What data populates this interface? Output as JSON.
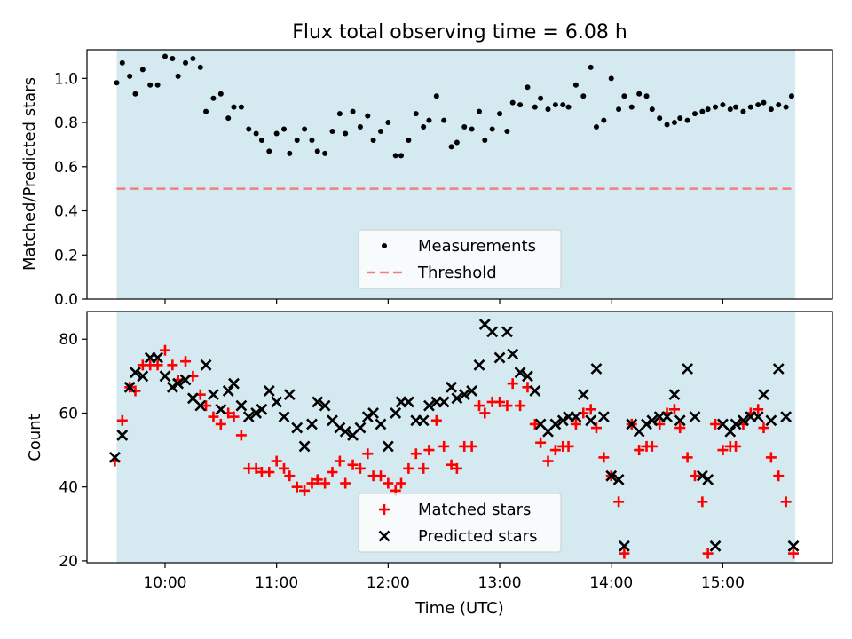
{
  "title": "Flux total observing time = 6.08 h",
  "colors": {
    "observing_band": "#d4eaf0",
    "threshold": "#f08080",
    "matched": "#ff0000",
    "predicted": "#000000",
    "measurements": "#000000"
  },
  "chart_data": [
    {
      "type": "scatter",
      "ylabel": "Matched/Predicted stars",
      "xlabel": "",
      "xlim": [
        "09:18",
        "15:59"
      ],
      "ylim": [
        0,
        1.13
      ],
      "y_ticks": [
        "0.0",
        "0.2",
        "0.4",
        "0.6",
        "0.8",
        "1.0"
      ],
      "observing_window": [
        "09:34",
        "15:39"
      ],
      "threshold": 0.5,
      "legend": {
        "placement": "lower-center",
        "entries": [
          "Measurements",
          "Threshold"
        ]
      },
      "series": [
        {
          "name": "Measurements",
          "marker": "dot",
          "x": [
            "09:34",
            "09:37",
            "09:41",
            "09:44",
            "09:48",
            "09:52",
            "09:56",
            "10:00",
            "10:04",
            "10:07",
            "10:11",
            "10:15",
            "10:19",
            "10:22",
            "10:26",
            "10:30",
            "10:34",
            "10:37",
            "10:41",
            "10:45",
            "10:49",
            "10:52",
            "10:56",
            "11:00",
            "11:04",
            "11:07",
            "11:11",
            "11:15",
            "11:19",
            "11:22",
            "11:26",
            "11:30",
            "11:34",
            "11:37",
            "11:41",
            "11:45",
            "11:49",
            "11:52",
            "11:56",
            "12:00",
            "12:04",
            "12:07",
            "12:11",
            "12:15",
            "12:19",
            "12:22",
            "12:26",
            "12:30",
            "12:34",
            "12:37",
            "12:41",
            "12:45",
            "12:49",
            "12:52",
            "12:56",
            "13:00",
            "13:04",
            "13:07",
            "13:11",
            "13:15",
            "13:19",
            "13:22",
            "13:26",
            "13:30",
            "13:34",
            "13:37",
            "13:41",
            "13:45",
            "13:49",
            "13:52",
            "13:56",
            "14:00",
            "14:04",
            "14:07",
            "14:11",
            "14:15",
            "14:19",
            "14:22",
            "14:26",
            "14:30",
            "14:34",
            "14:37",
            "14:41",
            "14:45",
            "14:49",
            "14:52",
            "14:56",
            "15:00",
            "15:04",
            "15:07",
            "15:11",
            "15:15",
            "15:19",
            "15:22",
            "15:26",
            "15:30",
            "15:34",
            "15:37"
          ],
          "y": [
            0.98,
            1.07,
            1.01,
            0.93,
            1.04,
            0.97,
            0.97,
            1.1,
            1.09,
            1.01,
            1.07,
            1.09,
            1.05,
            0.85,
            0.91,
            0.93,
            0.82,
            0.87,
            0.87,
            0.77,
            0.75,
            0.72,
            0.67,
            0.75,
            0.77,
            0.66,
            0.72,
            0.77,
            0.72,
            0.67,
            0.66,
            0.76,
            0.84,
            0.75,
            0.85,
            0.78,
            0.83,
            0.72,
            0.76,
            0.8,
            0.65,
            0.65,
            0.72,
            0.84,
            0.78,
            0.81,
            0.92,
            0.81,
            0.69,
            0.71,
            0.78,
            0.77,
            0.85,
            0.72,
            0.77,
            0.84,
            0.76,
            0.89,
            0.88,
            0.96,
            0.87,
            0.91,
            0.86,
            0.88,
            0.88,
            0.87,
            0.97,
            0.92,
            1.05,
            0.78,
            0.81,
            1.0,
            0.86,
            0.92,
            0.87,
            0.93,
            0.92,
            0.86,
            0.82,
            0.79,
            0.8,
            0.82,
            0.81,
            0.84,
            0.85,
            0.86,
            0.87,
            0.88,
            0.86,
            0.87,
            0.85,
            0.87,
            0.88,
            0.89,
            0.86,
            0.88,
            0.87,
            0.92
          ]
        }
      ]
    },
    {
      "type": "scatter",
      "ylabel": "Count",
      "xlabel": "Time (UTC)",
      "xlim": [
        "09:18",
        "15:59"
      ],
      "ylim": [
        19.5,
        87.5
      ],
      "x_ticks": [
        "10:00",
        "11:00",
        "12:00",
        "13:00",
        "14:00",
        "15:00"
      ],
      "y_ticks": [
        "20",
        "40",
        "60",
        "80"
      ],
      "observing_window": [
        "09:34",
        "15:39"
      ],
      "legend": {
        "placement": "lower-center",
        "entries": [
          "Matched stars",
          "Predicted stars"
        ]
      },
      "series": [
        {
          "name": "Matched stars",
          "marker": "plus",
          "x": [
            "09:33",
            "09:37",
            "09:41",
            "09:44",
            "09:48",
            "09:52",
            "09:56",
            "10:00",
            "10:04",
            "10:07",
            "10:11",
            "10:15",
            "10:19",
            "10:22",
            "10:26",
            "10:30",
            "10:34",
            "10:37",
            "10:41",
            "10:45",
            "10:49",
            "10:52",
            "10:56",
            "11:00",
            "11:04",
            "11:07",
            "11:11",
            "11:15",
            "11:19",
            "11:22",
            "11:26",
            "11:30",
            "11:34",
            "11:37",
            "11:41",
            "11:45",
            "11:49",
            "11:52",
            "11:56",
            "12:00",
            "12:04",
            "12:07",
            "12:11",
            "12:15",
            "12:19",
            "12:22",
            "12:26",
            "12:30",
            "12:34",
            "12:37",
            "12:41",
            "12:45",
            "12:49",
            "12:52",
            "12:56",
            "13:00",
            "13:04",
            "13:07",
            "13:11",
            "13:15",
            "13:19",
            "13:22",
            "13:26",
            "13:30",
            "13:34",
            "13:37",
            "13:41",
            "13:45",
            "13:49",
            "13:52",
            "13:56",
            "14:00",
            "14:04",
            "14:07",
            "14:11",
            "14:15",
            "14:19",
            "14:22",
            "14:26",
            "14:30",
            "14:34",
            "14:37",
            "14:41",
            "14:45",
            "14:49",
            "14:52",
            "14:56",
            "15:00",
            "15:04",
            "15:07",
            "15:11",
            "15:15",
            "15:19",
            "15:22",
            "15:26",
            "15:30",
            "15:34",
            "15:38"
          ],
          "y": [
            47,
            58,
            67,
            66,
            73,
            73,
            73,
            77,
            73,
            69,
            74,
            70,
            65,
            62,
            59,
            57,
            60,
            59,
            54,
            45,
            45,
            44,
            44,
            47,
            45,
            43,
            40,
            39,
            41,
            42,
            41,
            44,
            47,
            41,
            46,
            45,
            49,
            43,
            43,
            41,
            39,
            41,
            45,
            49,
            45,
            50,
            58,
            51,
            46,
            45,
            51,
            51,
            62,
            60,
            63,
            63,
            62,
            68,
            62,
            67,
            57,
            52,
            47,
            50,
            51,
            51,
            57,
            60,
            61,
            56,
            48,
            43,
            36,
            22,
            57,
            50,
            51,
            51,
            57,
            60,
            61,
            56,
            48,
            43,
            36,
            22,
            57,
            50,
            51,
            51,
            57,
            60,
            61,
            56,
            48,
            43,
            36,
            22
          ]
        },
        {
          "name": "Predicted stars",
          "marker": "x",
          "x": [
            "09:33",
            "09:37",
            "09:41",
            "09:44",
            "09:48",
            "09:52",
            "09:56",
            "10:00",
            "10:04",
            "10:07",
            "10:11",
            "10:15",
            "10:19",
            "10:22",
            "10:26",
            "10:30",
            "10:34",
            "10:37",
            "10:41",
            "10:45",
            "10:49",
            "10:52",
            "10:56",
            "11:00",
            "11:04",
            "11:07",
            "11:11",
            "11:15",
            "11:19",
            "11:22",
            "11:26",
            "11:30",
            "11:34",
            "11:37",
            "11:41",
            "11:45",
            "11:49",
            "11:52",
            "11:56",
            "12:00",
            "12:04",
            "12:07",
            "12:11",
            "12:15",
            "12:19",
            "12:22",
            "12:26",
            "12:30",
            "12:34",
            "12:37",
            "12:41",
            "12:45",
            "12:49",
            "12:52",
            "12:56",
            "13:00",
            "13:04",
            "13:07",
            "13:11",
            "13:15",
            "13:19",
            "13:22",
            "13:26",
            "13:30",
            "13:34",
            "13:37",
            "13:41",
            "13:45",
            "13:49",
            "13:52",
            "13:56",
            "14:00",
            "14:04",
            "14:07",
            "14:11",
            "14:15",
            "14:19",
            "14:22",
            "14:26",
            "14:30",
            "14:34",
            "14:37",
            "14:41",
            "14:45",
            "14:49",
            "14:52",
            "14:56",
            "15:00",
            "15:04",
            "15:07",
            "15:11",
            "15:15",
            "15:19",
            "15:22",
            "15:26",
            "15:30",
            "15:34",
            "15:38"
          ],
          "y": [
            48,
            54,
            67,
            71,
            70,
            75,
            75,
            70,
            67,
            68,
            69,
            64,
            62,
            73,
            65,
            61,
            66,
            68,
            62,
            59,
            60,
            61,
            66,
            63,
            59,
            65,
            56,
            51,
            57,
            63,
            62,
            58,
            56,
            55,
            54,
            56,
            59,
            60,
            57,
            51,
            60,
            63,
            63,
            58,
            58,
            62,
            63,
            63,
            67,
            64,
            65,
            66,
            73,
            84,
            82,
            75,
            82,
            76,
            71,
            70,
            66,
            57,
            55,
            57,
            58,
            59,
            59,
            65,
            58,
            72,
            59,
            43,
            42,
            24,
            57,
            55,
            57,
            58,
            59,
            59,
            65,
            58,
            72,
            59,
            43,
            42,
            24,
            57,
            55,
            57,
            58,
            59,
            59,
            65,
            58,
            72,
            59,
            24
          ]
        }
      ]
    }
  ]
}
